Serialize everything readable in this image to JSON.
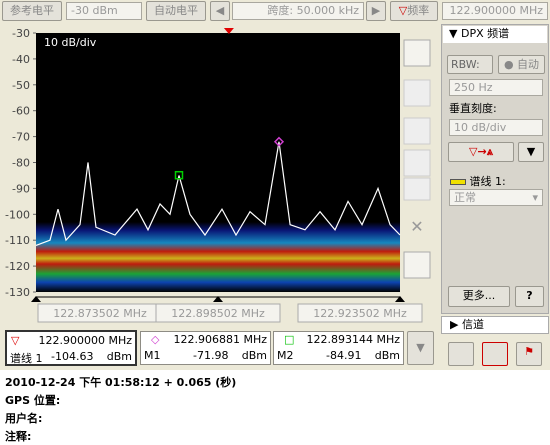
{
  "toolbar": {
    "ref_level_button": "参考电平",
    "ref_level": "-30 dBm",
    "auto_level": "自动电平",
    "span": "跨度: 50.000 kHz",
    "freq_button": "频率",
    "freq": "122.900000 MHz"
  },
  "chart_data": {
    "type": "line",
    "annotation": "10 dB/div",
    "x": [
      122.873502,
      122.875425,
      122.876524,
      122.877623,
      122.879546,
      122.880645,
      122.881744,
      122.884354,
      122.887375,
      122.888887,
      122.890535,
      122.891909,
      122.893144,
      122.894655,
      122.896715,
      122.89905,
      122.900975,
      122.902898,
      122.904958,
      122.906881,
      122.908405,
      122.910455,
      122.912516,
      122.914576,
      122.916362,
      122.918285,
      122.920483,
      122.922131,
      122.923502
    ],
    "series": [
      {
        "color": "#ffffff",
        "values": [
          -112,
          -110,
          -98,
          -110,
          -104,
          -80,
          -105,
          -108,
          -98,
          -106,
          -96,
          -100,
          -85,
          -100,
          -108,
          -98,
          -108,
          -99,
          -104,
          -72,
          -104,
          -106,
          -99,
          -106,
          -95,
          -104,
          -90,
          -104,
          -108
        ]
      }
    ],
    "markers": [
      {
        "x": 122.906881,
        "y": -71.98,
        "color": "#d040d0",
        "shape": "diamond"
      },
      {
        "x": 122.893144,
        "y": -84.91,
        "color": "#00d000",
        "shape": "square"
      }
    ],
    "reference_marker": 122.9,
    "reference_color": "#e00000",
    "xlim": [
      122.873502,
      122.923502
    ],
    "xticks": [
      {
        "value": 122.873502,
        "label": "122.873502 MHz"
      },
      {
        "value": 122.898502,
        "label": "122.898502 MHz"
      },
      {
        "value": 122.923502,
        "label": "122.923502 MHz"
      }
    ],
    "ylim": [
      -130,
      -30
    ],
    "yticks": [
      -30,
      -40,
      -50,
      -60,
      -70,
      -80,
      -90,
      -100,
      -110,
      -120,
      -130
    ],
    "grid": false
  },
  "panel": {
    "title": "DPX 频谱",
    "rbw_button": "RBW:",
    "auto": "自动",
    "rbw": "250 Hz",
    "vertical_scale_label": "垂直刻度:",
    "vertical_scale": "10 dB/div",
    "trace_label": "谱线 1:",
    "trace_mode": "正常",
    "more": "更多...",
    "help": "?",
    "channel": "信道"
  },
  "readouts": [
    {
      "freq": "122.900000 MHz",
      "name": "谱线 1",
      "level": "-104.63",
      "unit": "dBm"
    },
    {
      "freq": "122.906881 MHz",
      "name": "M1",
      "level": "-71.98",
      "unit": "dBm"
    },
    {
      "freq": "122.893144 MHz",
      "name": "M2",
      "level": "-84.91",
      "unit": "dBm"
    }
  ],
  "status": {
    "timestamp": "2010-12-24 下午 01:58:12 + 0.065 (秒)",
    "gps": "GPS 位置:",
    "user": "用户名:",
    "note": "注释:"
  }
}
